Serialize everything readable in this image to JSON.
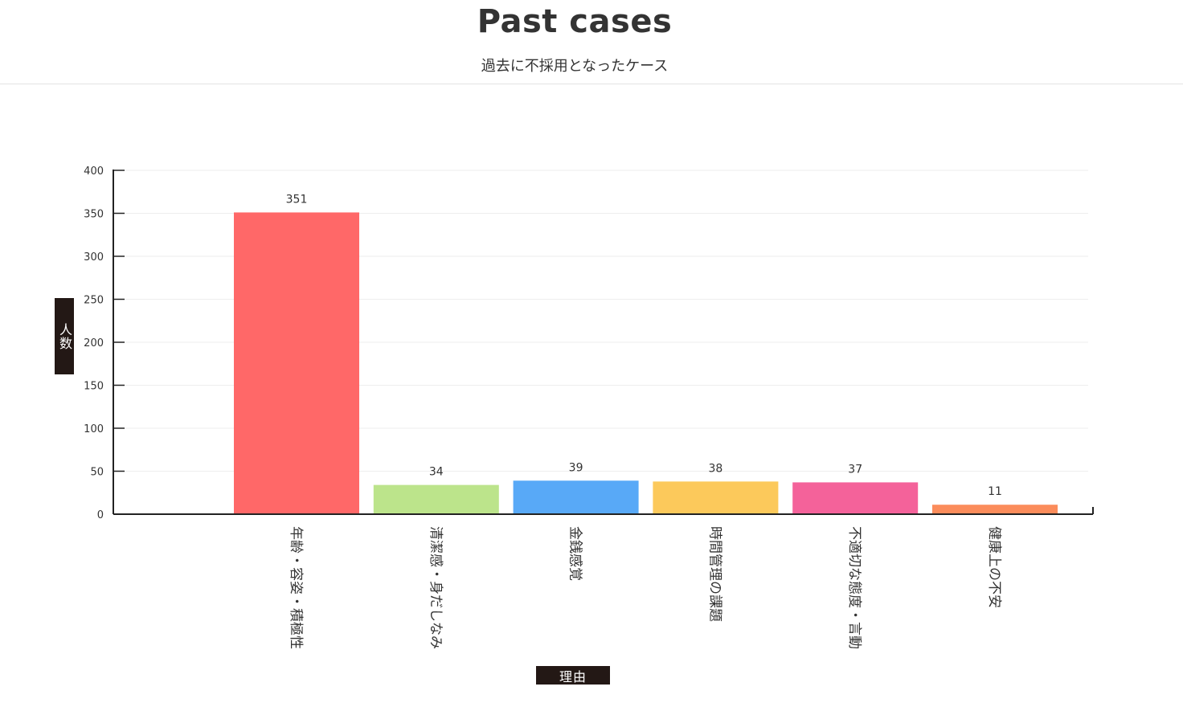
{
  "header": {
    "title": "Past cases",
    "subtitle": "過去に不採用となったケース"
  },
  "chart_data": {
    "type": "bar",
    "categories": [
      "年齢・容姿・積極性",
      "清潔感・身だしなみ",
      "金銭感覚",
      "時間管理の課題",
      "不適切な態度・言動",
      "健康上の不安"
    ],
    "values": [
      351,
      34,
      39,
      38,
      37,
      11
    ],
    "colors": [
      "#ff6868",
      "#bce48b",
      "#58a9f7",
      "#fcc95b",
      "#f4629a",
      "#fb8c5b"
    ],
    "ylabel": "人数",
    "xlabel": "理由",
    "ylim": [
      0,
      400
    ],
    "yticks": [
      0,
      50,
      100,
      150,
      200,
      250,
      300,
      350,
      400
    ],
    "grid": true,
    "data_labels": true
  }
}
